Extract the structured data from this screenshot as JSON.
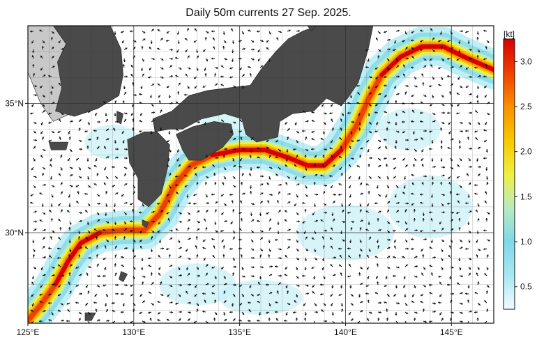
{
  "title": "Daily 50m currents 27 Sep. 2025.",
  "map": {
    "lon_range": [
      125,
      147
    ],
    "lat_range": [
      26.5,
      38
    ],
    "lon_ticks": [
      {
        "value": 125,
        "label": "125°E"
      },
      {
        "value": 130,
        "label": "130°E"
      },
      {
        "value": 135,
        "label": "135°E"
      },
      {
        "value": 140,
        "label": "140°E"
      },
      {
        "value": 145,
        "label": "145°E"
      }
    ],
    "lat_ticks": [
      {
        "value": 35,
        "label": "35°N"
      },
      {
        "value": 30,
        "label": "30°N"
      }
    ],
    "colors": {
      "land": "#4a4a4a",
      "shelf": "#c8c8c8",
      "ocean": "#ffffff",
      "grid": "#333333"
    }
  },
  "colorbar": {
    "unit": "[kt]",
    "min": 0.25,
    "max": 3.25,
    "ticks": [
      {
        "value": 0.5,
        "label": "0.5"
      },
      {
        "value": 1.0,
        "label": "1.0"
      },
      {
        "value": 1.5,
        "label": "1.5"
      },
      {
        "value": 2.0,
        "label": "2.0"
      },
      {
        "value": 2.5,
        "label": "2.5"
      },
      {
        "value": 3.0,
        "label": "3.0"
      }
    ],
    "stops": [
      "#f0fbff",
      "#a8e8f2",
      "#7fd8ea",
      "#b8ecc0",
      "#f0f040",
      "#f8c800",
      "#f89000",
      "#f04000",
      "#d80000"
    ]
  },
  "kuroshio_path": [
    [
      125.0,
      26.6
    ],
    [
      125.6,
      27.2
    ],
    [
      126.3,
      28.0
    ],
    [
      126.9,
      28.9
    ],
    [
      127.5,
      29.6
    ],
    [
      128.4,
      30.0
    ],
    [
      129.5,
      30.1
    ],
    [
      130.5,
      30.1
    ],
    [
      131.2,
      30.7
    ],
    [
      131.9,
      31.8
    ],
    [
      132.7,
      32.6
    ],
    [
      133.7,
      33.0
    ],
    [
      135.0,
      33.2
    ],
    [
      136.2,
      33.2
    ],
    [
      137.3,
      32.9
    ],
    [
      138.2,
      32.6
    ],
    [
      139.0,
      32.6
    ],
    [
      139.8,
      33.2
    ],
    [
      140.5,
      34.1
    ],
    [
      141.1,
      35.2
    ],
    [
      141.7,
      36.1
    ],
    [
      142.6,
      36.8
    ],
    [
      143.6,
      37.2
    ],
    [
      144.6,
      37.2
    ],
    [
      145.6,
      36.8
    ],
    [
      147.0,
      36.3
    ]
  ]
}
